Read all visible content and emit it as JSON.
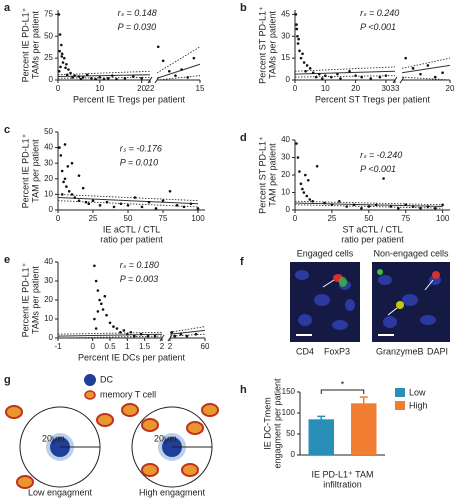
{
  "chart_data": [
    {
      "type": "scatter",
      "panel": "a",
      "ylabel": [
        "Percent IE PD-L1⁺",
        "TAMs per patient"
      ],
      "xlabel": [
        "Percent IE Tregs per patient"
      ],
      "stats": [
        "rₛ = 0.148",
        "P = 0.030"
      ],
      "xlim": [
        0,
        22
      ],
      "xticks": [
        0,
        10,
        20,
        22
      ],
      "x2lim": [
        22,
        15
      ],
      "x2ticks": [
        15
      ],
      "ylim": [
        0,
        80
      ],
      "yticks": [
        0,
        25,
        50,
        75
      ],
      "points": [
        {
          "x": [
            0.2,
            0.5,
            0.8,
            1,
            1.5,
            2,
            2.5,
            3,
            4,
            5,
            6,
            7,
            8,
            9,
            10,
            12,
            14,
            16,
            18,
            20,
            0.3,
            0.6,
            1.2,
            3.5,
            5.5,
            0.4,
            0.9,
            2.2,
            1.8,
            11,
            13
          ],
          "y": [
            75,
            52,
            40,
            30,
            25,
            18,
            12,
            8,
            5,
            4,
            3,
            6,
            2,
            1,
            3,
            2,
            1,
            2,
            4,
            2,
            10,
            15,
            20,
            3,
            1,
            33,
            27,
            6,
            14,
            1,
            5
          ]
        },
        {
          "axis": "x2",
          "x": [
            21.8,
            21,
            20,
            19,
            18,
            17,
            16
          ],
          "y": [
            38,
            22,
            10,
            5,
            12,
            3,
            25
          ]
        }
      ],
      "fits": [
        {
          "style": "solid",
          "x": [
            0,
            22
          ],
          "y": [
            4,
            6
          ]
        },
        {
          "style": "dotted",
          "x": [
            0,
            22
          ],
          "y": [
            6,
            10
          ]
        },
        {
          "style": "dotted",
          "x": [
            0,
            22
          ],
          "y": [
            2,
            3
          ]
        },
        {
          "axis": "x2",
          "style": "solid",
          "x": [
            22,
            15
          ],
          "y": [
            2,
            18
          ]
        },
        {
          "axis": "x2",
          "style": "dotted",
          "x": [
            22,
            15
          ],
          "y": [
            8,
            38
          ]
        },
        {
          "axis": "x2",
          "style": "dotted",
          "x": [
            22,
            15
          ],
          "y": [
            0,
            5
          ]
        }
      ]
    },
    {
      "type": "scatter",
      "panel": "b",
      "ylabel": [
        "Percent ST PD-L1⁺",
        "TAMs per patient"
      ],
      "xlabel": [
        "Percent ST Tregs per patient"
      ],
      "stats": [
        "rₛ = 0.240",
        "P <0.001"
      ],
      "xlim": [
        0,
        33
      ],
      "xticks": [
        0,
        10,
        20,
        30,
        33
      ],
      "x2lim": [
        33,
        20
      ],
      "x2ticks": [
        20
      ],
      "ylim": [
        0,
        48
      ],
      "yticks": [
        0,
        15,
        30,
        45
      ],
      "points": [
        {
          "x": [
            0.3,
            0.5,
            0.8,
            1,
            1.5,
            2,
            3,
            4,
            5,
            6,
            8,
            10,
            12,
            15,
            18,
            20,
            22,
            25,
            28,
            30,
            0.6,
            1.2,
            2.5,
            3.5,
            7,
            9,
            14
          ],
          "y": [
            45,
            38,
            30,
            25,
            20,
            15,
            12,
            10,
            8,
            5,
            4,
            3,
            2,
            1,
            6,
            3,
            2,
            1,
            2,
            3,
            35,
            28,
            18,
            6,
            2,
            1,
            4
          ]
        },
        {
          "axis": "x2",
          "x": [
            32,
            30,
            28,
            26,
            24,
            22
          ],
          "y": [
            15,
            8,
            4,
            10,
            2,
            5
          ]
        }
      ],
      "fits": [
        {
          "style": "solid",
          "x": [
            0,
            33
          ],
          "y": [
            4,
            6
          ]
        },
        {
          "style": "dotted",
          "x": [
            0,
            33
          ],
          "y": [
            6,
            9
          ]
        },
        {
          "style": "dotted",
          "x": [
            0,
            33
          ],
          "y": [
            2,
            3
          ]
        },
        {
          "axis": "x2",
          "style": "solid",
          "x": [
            33,
            20
          ],
          "y": [
            5,
            10
          ]
        },
        {
          "axis": "x2",
          "style": "dotted",
          "x": [
            33,
            20
          ],
          "y": [
            8,
            15
          ]
        },
        {
          "axis": "x2",
          "style": "dotted",
          "x": [
            33,
            20
          ],
          "y": [
            2,
            0
          ]
        }
      ]
    },
    {
      "type": "scatter",
      "panel": "c",
      "ylabel": [
        "Percent IE PD-L1⁺",
        "TAM per patient"
      ],
      "xlabel": [
        "IE aCTL / CTL",
        "ratio per patient"
      ],
      "stats": [
        "rₛ = -0.176",
        "P = 0.010"
      ],
      "xlim": [
        0,
        105
      ],
      "xticks": [
        0,
        25,
        50,
        75,
        100
      ],
      "ylim": [
        0,
        50
      ],
      "yticks": [
        0,
        10,
        20,
        30,
        40,
        50
      ],
      "points": [
        {
          "x": [
            1,
            2,
            3,
            4,
            5,
            6,
            8,
            10,
            12,
            15,
            18,
            20,
            22,
            25,
            30,
            35,
            40,
            45,
            50,
            55,
            60,
            65,
            70,
            75,
            80,
            85,
            90,
            95,
            100,
            5,
            10,
            15,
            3,
            7
          ],
          "y": [
            40,
            35,
            25,
            18,
            20,
            15,
            12,
            10,
            8,
            6,
            14,
            5,
            4,
            6,
            3,
            5,
            2,
            4,
            3,
            8,
            2,
            5,
            1,
            6,
            12,
            3,
            2,
            4,
            1,
            42,
            30,
            22,
            10,
            28
          ]
        }
      ],
      "fits": [
        {
          "style": "solid",
          "x": [
            0,
            100
          ],
          "y": [
            8,
            4
          ]
        },
        {
          "style": "dotted",
          "x": [
            0,
            100
          ],
          "y": [
            10,
            6
          ]
        },
        {
          "style": "dotted",
          "x": [
            0,
            100
          ],
          "y": [
            6,
            2
          ]
        }
      ]
    },
    {
      "type": "scatter",
      "panel": "d",
      "ylabel": [
        "Percent ST PD-L1⁺",
        "TAM per patient"
      ],
      "xlabel": [
        "ST aCTL / CTL",
        "ratio per patient"
      ],
      "stats": [
        "rₛ = -0.240",
        "P <0.001"
      ],
      "xlim": [
        0,
        105
      ],
      "xticks": [
        0,
        25,
        50,
        75,
        100
      ],
      "ylim": [
        0,
        40
      ],
      "yticks": [
        0,
        10,
        20,
        30,
        40
      ],
      "points": [
        {
          "x": [
            1,
            2,
            3,
            4,
            5,
            6,
            8,
            10,
            12,
            15,
            20,
            25,
            30,
            35,
            40,
            45,
            50,
            55,
            60,
            65,
            70,
            75,
            80,
            85,
            90,
            95,
            100,
            7,
            9
          ],
          "y": [
            38,
            30,
            22,
            15,
            12,
            10,
            8,
            6,
            5,
            25,
            4,
            3,
            5,
            2,
            3,
            1,
            2,
            3,
            18,
            2,
            1,
            3,
            2,
            1,
            2,
            1,
            3,
            20,
            17
          ]
        }
      ],
      "fits": [
        {
          "style": "solid",
          "x": [
            0,
            100
          ],
          "y": [
            4,
            2
          ]
        },
        {
          "style": "dotted",
          "x": [
            0,
            100
          ],
          "y": [
            5,
            3
          ]
        },
        {
          "style": "dotted",
          "x": [
            0,
            100
          ],
          "y": [
            3,
            1
          ]
        }
      ]
    },
    {
      "type": "scatter",
      "panel": "e",
      "ylabel": [
        "Percent IE PD-L1⁺",
        "TAMs per patient"
      ],
      "xlabel": [
        "Percent IE DCs per patient"
      ],
      "stats": [
        "rₛ = 0.180",
        "P = 0.003"
      ],
      "xlim": [
        -1,
        2
      ],
      "xticks": [
        -1,
        0,
        0.5,
        1,
        1.5,
        2
      ],
      "x2lim": [
        2,
        60
      ],
      "x2ticks": [
        2,
        60
      ],
      "ylim": [
        0,
        40
      ],
      "yticks": [
        0,
        10,
        20,
        30,
        40
      ],
      "points": [
        {
          "x": [
            0.05,
            0.1,
            0.15,
            0.2,
            0.3,
            0.4,
            0.5,
            0.6,
            0.7,
            0.8,
            1,
            1.2,
            1.4,
            1.6,
            1.8,
            0.05,
            0.1,
            0.25,
            0.35,
            0.9,
            1.1,
            0.15
          ],
          "y": [
            38,
            30,
            25,
            20,
            15,
            12,
            8,
            6,
            5,
            3,
            2,
            1,
            2,
            1,
            1,
            10,
            5,
            18,
            22,
            4,
            3,
            14
          ]
        },
        {
          "axis": "x2",
          "x": [
            5,
            10,
            20,
            30,
            45
          ],
          "y": [
            3,
            1,
            2,
            1,
            2
          ]
        }
      ],
      "fits": [
        {
          "style": "solid",
          "x": [
            -1,
            2
          ],
          "y": [
            1,
            2
          ]
        },
        {
          "style": "dotted",
          "x": [
            -1,
            2
          ],
          "y": [
            2,
            3
          ]
        },
        {
          "style": "dotted",
          "x": [
            -1,
            2
          ],
          "y": [
            0,
            1
          ]
        },
        {
          "axis": "x2",
          "style": "solid",
          "x": [
            2,
            60
          ],
          "y": [
            2,
            4
          ]
        },
        {
          "axis": "x2",
          "style": "dotted",
          "x": [
            2,
            60
          ],
          "y": [
            3,
            6
          ]
        },
        {
          "axis": "x2",
          "style": "dotted",
          "x": [
            2,
            60
          ],
          "y": [
            1,
            2
          ]
        }
      ]
    },
    {
      "type": "bar",
      "panel": "h",
      "ylabel": [
        "IE DC-Tmem",
        "engagment per patient"
      ],
      "xlabel": [
        "IE PD-L1⁺ TAM",
        "infiltration"
      ],
      "categories": [
        "Low",
        "High"
      ],
      "values": [
        85,
        123
      ],
      "errors": [
        7,
        15
      ],
      "colors": [
        "#2a8fb8",
        "#f07d32"
      ],
      "ylim": [
        0,
        150
      ],
      "yticks": [
        0,
        50,
        100,
        150
      ],
      "annotation": "*"
    }
  ],
  "figure_f": {
    "panel": "f",
    "titles": [
      "Engaged cells",
      "Non-engaged cells"
    ],
    "stains": [
      {
        "label": "CD4",
        "color": "#c8c800"
      },
      {
        "label": "FoxP3",
        "color": "#d83030"
      },
      {
        "label": "GranzymeB",
        "color": "#2aa02a"
      },
      {
        "label": "DAPI",
        "color": "#2a3aa8"
      }
    ]
  },
  "figure_g": {
    "panel": "g",
    "legend": [
      "DC",
      "memory T cell"
    ],
    "scale_label": "20μm",
    "captions": [
      "Low engagment",
      "High engagment"
    ]
  }
}
